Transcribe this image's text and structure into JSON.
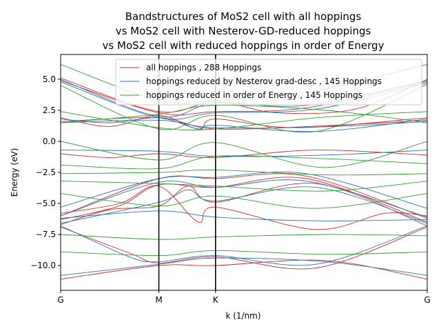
{
  "chart_data": {
    "type": "line",
    "title": [
      "Bandstructures of MoS2 cell with all hoppings",
      "vs MoS2 cell with Nesterov-GD-reduced hoppings",
      "vs MoS2 cell with reduced hoppings in order of Energy"
    ],
    "xlabel": "k (1/nm)",
    "ylabel": "Energy (eV)",
    "xlim": [
      0,
      3.732
    ],
    "ylim": [
      -12.0,
      7.0
    ],
    "yticks": [
      5.0,
      2.5,
      0.0,
      -2.5,
      -5.0,
      -7.5,
      -10.0
    ],
    "ytick_labels": [
      "5.0",
      "2.5",
      "0.0",
      "−2.5",
      "−5.0",
      "−7.5",
      "−10.0"
    ],
    "kpoints": [
      {
        "label": "G",
        "x": 0
      },
      {
        "label": "M",
        "x": 1.0
      },
      {
        "label": "K",
        "x": 1.577
      },
      {
        "label": "K",
        "x": 1.577
      },
      {
        "label": "G",
        "x": 3.732
      }
    ],
    "kpoint_labels": [
      "G",
      "M",
      "K",
      "G"
    ],
    "grid": false,
    "legend_position": "top-right",
    "series": [
      {
        "name": "all hoppings , 288 Hoppings",
        "color": "#d62728",
        "bands": [
          [
            [
              0,
              5.1
            ],
            [
              1,
              2.4
            ],
            [
              1.577,
              3.2
            ],
            [
              2.2,
              2.3
            ],
            [
              3.0,
              2.6
            ],
            [
              3.732,
              5.0
            ]
          ],
          [
            [
              0,
              4.9
            ],
            [
              1,
              2.3
            ],
            [
              1.577,
              2.4
            ],
            [
              2.5,
              2.7
            ],
            [
              3.732,
              4.8
            ]
          ],
          [
            [
              0,
              1.9
            ],
            [
              0.5,
              1.2
            ],
            [
              1,
              2.1
            ],
            [
              1.4,
              1.0
            ],
            [
              1.577,
              1.8
            ],
            [
              2.4,
              1.1
            ],
            [
              3.732,
              1.9
            ]
          ],
          [
            [
              0,
              1.6
            ],
            [
              1,
              1.9
            ],
            [
              1.577,
              1.0
            ],
            [
              2.8,
              1.3
            ],
            [
              3.732,
              1.7
            ]
          ],
          [
            [
              0,
              -1.0
            ],
            [
              0.5,
              -1.3
            ],
            [
              1,
              -1.0
            ],
            [
              1.577,
              -1.3
            ],
            [
              2.6,
              -0.7
            ],
            [
              3.732,
              -1.1
            ]
          ],
          [
            [
              0,
              -6.0
            ],
            [
              1,
              -3.0
            ],
            [
              1.577,
              -3.0
            ],
            [
              2.5,
              -2.8
            ],
            [
              3.732,
              -6.2
            ]
          ],
          [
            [
              0,
              -6.3
            ],
            [
              0.6,
              -5.2
            ],
            [
              1,
              -3.5
            ],
            [
              1.577,
              -3.7
            ],
            [
              2.5,
              -3.0
            ],
            [
              3.732,
              -6.5
            ]
          ],
          [
            [
              0,
              -6.7
            ],
            [
              0.5,
              -5.5
            ],
            [
              1,
              -5.2
            ],
            [
              1.3,
              -3.6
            ],
            [
              1.577,
              -4.9
            ],
            [
              2.6,
              -3.4
            ],
            [
              3.732,
              -6.8
            ]
          ],
          [
            [
              0,
              -5.8
            ],
            [
              0.6,
              -5.0
            ],
            [
              1,
              -3.6
            ],
            [
              1.4,
              -6.5
            ],
            [
              1.577,
              -5.3
            ],
            [
              2.6,
              -7.1
            ],
            [
              3.3,
              -5.8
            ],
            [
              3.732,
              -6.0
            ]
          ],
          [
            [
              0,
              -6.9
            ],
            [
              0.7,
              -9.0
            ],
            [
              1,
              -9.8
            ],
            [
              1.577,
              -9.3
            ],
            [
              2.6,
              -10.2
            ],
            [
              3.732,
              -6.9
            ]
          ],
          [
            [
              0,
              -11.1
            ],
            [
              1,
              -10.0
            ],
            [
              1.577,
              -10.0
            ],
            [
              2.7,
              -9.6
            ],
            [
              3.732,
              -11.1
            ]
          ]
        ]
      },
      {
        "name": "hoppings reduced by Nesterov grad-desc , 145 Hoppings",
        "color": "#1f77b4",
        "bands": [
          [
            [
              0,
              5.0
            ],
            [
              1,
              2.0
            ],
            [
              1.577,
              3.1
            ],
            [
              2.5,
              2.9
            ],
            [
              3.732,
              4.9
            ]
          ],
          [
            [
              0,
              4.8
            ],
            [
              1,
              1.9
            ],
            [
              1.577,
              2.3
            ],
            [
              2.6,
              2.6
            ],
            [
              3.732,
              4.7
            ]
          ],
          [
            [
              0,
              1.8
            ],
            [
              0.5,
              1.5
            ],
            [
              1,
              1.9
            ],
            [
              1.4,
              1.0
            ],
            [
              1.577,
              1.3
            ],
            [
              2.6,
              0.8
            ],
            [
              3.732,
              1.8
            ]
          ],
          [
            [
              0,
              1.5
            ],
            [
              1,
              1.7
            ],
            [
              1.577,
              1.1
            ],
            [
              2.8,
              1.2
            ],
            [
              3.732,
              1.6
            ]
          ],
          [
            [
              0,
              -0.7
            ],
            [
              1,
              -0.8
            ],
            [
              1.577,
              -1.2
            ],
            [
              2.7,
              -1.1
            ],
            [
              3.732,
              -0.7
            ]
          ],
          [
            [
              0,
              -5.3
            ],
            [
              1,
              -3.0
            ],
            [
              1.577,
              -2.9
            ],
            [
              2.5,
              -2.6
            ],
            [
              3.732,
              -5.4
            ]
          ],
          [
            [
              0,
              -6.0
            ],
            [
              1,
              -3.3
            ],
            [
              1.577,
              -3.7
            ],
            [
              2.5,
              -3.2
            ],
            [
              3.732,
              -6.1
            ]
          ],
          [
            [
              0,
              -6.6
            ],
            [
              1,
              -4.9
            ],
            [
              1.3,
              -3.9
            ],
            [
              1.577,
              -4.8
            ],
            [
              2.6,
              -3.7
            ],
            [
              3.732,
              -6.6
            ]
          ],
          [
            [
              0,
              -6.2
            ],
            [
              1,
              -5.6
            ],
            [
              1.577,
              -6.1
            ],
            [
              2.6,
              -6.4
            ],
            [
              3.732,
              -6.3
            ]
          ],
          [
            [
              0,
              -6.8
            ],
            [
              0.7,
              -9.3
            ],
            [
              1,
              -9.7
            ],
            [
              1.577,
              -9.2
            ],
            [
              2.6,
              -9.9
            ],
            [
              3.732,
              -6.8
            ]
          ],
          [
            [
              0,
              -10.8
            ],
            [
              1,
              -9.9
            ],
            [
              1.577,
              -9.4
            ],
            [
              2.7,
              -9.7
            ],
            [
              3.732,
              -10.8
            ]
          ]
        ]
      },
      {
        "name": "hoppings reduced in order of Energy , 145 Hoppings",
        "color": "#2ca02c",
        "bands": [
          [
            [
              0,
              6.2
            ],
            [
              1,
              3.3
            ],
            [
              1.577,
              3.3
            ],
            [
              2.6,
              4.1
            ],
            [
              3.732,
              6.2
            ]
          ],
          [
            [
              0,
              4.5
            ],
            [
              1,
              1.0
            ],
            [
              1.577,
              2.1
            ],
            [
              2.6,
              0.8
            ],
            [
              3.732,
              4.6
            ]
          ],
          [
            [
              0,
              2.4
            ],
            [
              1,
              1.1
            ],
            [
              1.577,
              1.0
            ],
            [
              2.6,
              1.9
            ],
            [
              3.732,
              2.4
            ]
          ],
          [
            [
              0,
              1.5
            ],
            [
              1,
              2.2
            ],
            [
              1.577,
              2.9
            ],
            [
              2.7,
              2.5
            ],
            [
              3.732,
              1.5
            ]
          ],
          [
            [
              0,
              0.0
            ],
            [
              1,
              -1.5
            ],
            [
              1.577,
              -0.1
            ],
            [
              2.7,
              -2.1
            ],
            [
              3.732,
              0.0
            ]
          ],
          [
            [
              0,
              -1.9
            ],
            [
              1,
              -2.2
            ],
            [
              1.577,
              -1.2
            ],
            [
              2.7,
              -1.4
            ],
            [
              3.732,
              -1.8
            ]
          ],
          [
            [
              0,
              -2.6
            ],
            [
              1,
              -2.5
            ],
            [
              1.577,
              -2.3
            ],
            [
              2.7,
              -2.7
            ],
            [
              3.732,
              -2.6
            ]
          ],
          [
            [
              0,
              -3.2
            ],
            [
              1,
              -3.4
            ],
            [
              1.577,
              -3.6
            ],
            [
              2.7,
              -4.0
            ],
            [
              3.732,
              -3.2
            ]
          ],
          [
            [
              0,
              -4.2
            ],
            [
              1,
              -5.2
            ],
            [
              1.577,
              -4.4
            ],
            [
              2.6,
              -5.4
            ],
            [
              3.732,
              -4.2
            ]
          ],
          [
            [
              0,
              -7.5
            ],
            [
              1,
              -7.9
            ],
            [
              1.577,
              -7.7
            ],
            [
              2.7,
              -7.5
            ],
            [
              3.732,
              -7.6
            ]
          ],
          [
            [
              0,
              -8.9
            ],
            [
              1,
              -9.2
            ],
            [
              1.577,
              -8.8
            ],
            [
              2.7,
              -9.1
            ],
            [
              3.732,
              -8.9
            ]
          ]
        ]
      }
    ]
  }
}
